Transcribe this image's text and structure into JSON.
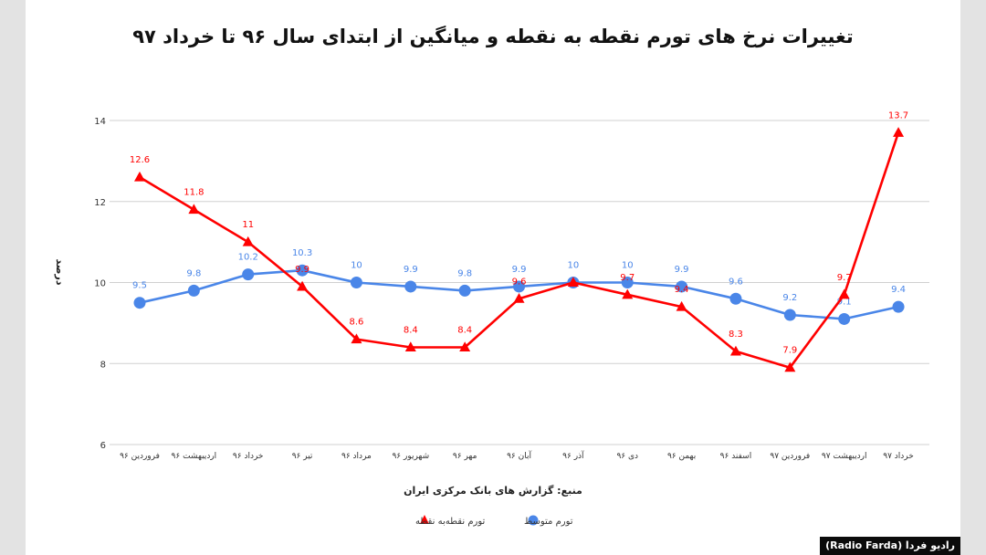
{
  "chart_data": {
    "type": "line",
    "title": "تغییرات نرخ های تورم نقطه به نقطه و میانگین از ابتدای سال ۹۶ تا خرداد ۹۷",
    "ylabel": "درصد",
    "source": "منبع: گزارش های بانک مرکزی ایران",
    "ylim": [
      6,
      14
    ],
    "yticks": [
      "6",
      "8",
      "10",
      "12",
      "14"
    ],
    "grid": true,
    "legend_position": "bottom",
    "categories": [
      "فروردین ۹۶",
      "اردیبهشت ۹۶",
      "خرداد ۹۶",
      "تیر ۹۶",
      "مرداد ۹۶",
      "شهریور ۹۶",
      "مهر ۹۶",
      "آبان ۹۶",
      "آذر ۹۶",
      "دی ۹۶",
      "بهمن ۹۶",
      "اسفند ۹۶",
      "فروردین ۹۷",
      "اردیبهشت ۹۷",
      "خرداد ۹۷"
    ],
    "series": [
      {
        "name": "تورم متوسط",
        "color": "#4a86e8",
        "marker": "circle",
        "values": [
          9.5,
          9.8,
          10.2,
          10.3,
          10,
          9.9,
          9.8,
          9.9,
          10,
          10,
          9.9,
          9.6,
          9.2,
          9.1,
          9.4
        ],
        "labels": [
          "9.5",
          "9.8",
          "10.2",
          "10.3",
          "10",
          "9.9",
          "9.8",
          "9.9",
          "10",
          "10",
          "9.9",
          "9.6",
          "9.2",
          "9.1",
          "9.4"
        ]
      },
      {
        "name": "تورم نقطه‌به نقطه",
        "color": "#ff0000",
        "marker": "triangle",
        "values": [
          12.6,
          11.8,
          11,
          9.9,
          8.6,
          8.4,
          8.4,
          9.6,
          10,
          9.7,
          9.4,
          8.3,
          7.9,
          9.7,
          13.7
        ],
        "labels": [
          "12.6",
          "11.8",
          "11",
          "9.9",
          "8.6",
          "8.4",
          "8.4",
          "9.6",
          "",
          "9.7",
          "9.4",
          "8.3",
          "7.9",
          "9.7",
          "13.7"
        ]
      }
    ]
  },
  "credit": "رادیو فردا (Radio Farda)"
}
